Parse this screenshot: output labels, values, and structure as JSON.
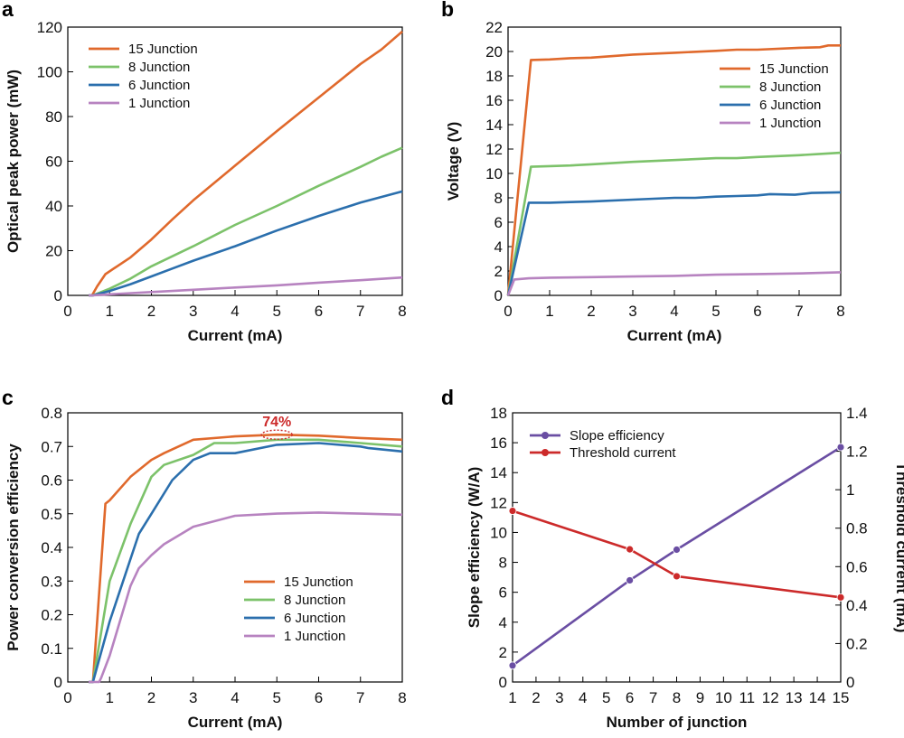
{
  "colors": {
    "j15": "#e0692c",
    "j8": "#7cc26a",
    "j6": "#2b6fad",
    "j1": "#b783c0",
    "slope": "#6a4ea3",
    "threshold": "#cc2a2a",
    "annotation": "#cc2a2a"
  },
  "chart_data": [
    {
      "panel": "a",
      "type": "line",
      "xlabel": "Current (mA)",
      "ylabel": "Optical peak power (mW)",
      "xlim": [
        0,
        8
      ],
      "ylim": [
        0,
        120
      ],
      "xticks": [
        "0",
        "1",
        "2",
        "3",
        "4",
        "5",
        "6",
        "7",
        "8"
      ],
      "yticks": [
        "0",
        "20",
        "40",
        "60",
        "80",
        "100",
        "120"
      ],
      "legend_position": "top-left",
      "series": [
        {
          "name": "15 Junction",
          "color_key": "j15",
          "points": [
            [
              0.5,
              0
            ],
            [
              0.58,
              0
            ],
            [
              0.7,
              4
            ],
            [
              0.9,
              9.5
            ],
            [
              1.5,
              17
            ],
            [
              2,
              25
            ],
            [
              2.5,
              34
            ],
            [
              3,
              42.5
            ],
            [
              4,
              58
            ],
            [
              5,
              73.5
            ],
            [
              6,
              88.5
            ],
            [
              7,
              103.5
            ],
            [
              7.5,
              110
            ],
            [
              8,
              118
            ]
          ]
        },
        {
          "name": "8 Junction",
          "color_key": "j8",
          "points": [
            [
              0.5,
              0
            ],
            [
              0.6,
              0
            ],
            [
              1,
              3
            ],
            [
              1.5,
              7.5
            ],
            [
              2,
              13
            ],
            [
              3,
              22
            ],
            [
              4,
              31.5
            ],
            [
              5,
              40
            ],
            [
              6,
              49
            ],
            [
              7,
              57.5
            ],
            [
              7.5,
              62
            ],
            [
              8,
              66
            ]
          ]
        },
        {
          "name": "6 Junction",
          "color_key": "j6",
          "points": [
            [
              0.5,
              0
            ],
            [
              0.6,
              0
            ],
            [
              1,
              2
            ],
            [
              1.5,
              5
            ],
            [
              2,
              8.5
            ],
            [
              2.5,
              12
            ],
            [
              3,
              15.5
            ],
            [
              4,
              22
            ],
            [
              5,
              29
            ],
            [
              6,
              35.5
            ],
            [
              7,
              41.5
            ],
            [
              8,
              46.5
            ]
          ]
        },
        {
          "name": "1 Junction",
          "color_key": "j1",
          "points": [
            [
              0.5,
              0
            ],
            [
              0.6,
              0
            ],
            [
              1,
              0.5
            ],
            [
              2,
              1.5
            ],
            [
              3,
              2.5
            ],
            [
              4,
              3.5
            ],
            [
              5,
              4.5
            ],
            [
              6,
              5.7
            ],
            [
              7,
              6.8
            ],
            [
              8,
              8
            ]
          ]
        }
      ]
    },
    {
      "panel": "b",
      "type": "line",
      "xlabel": "Current (mA)",
      "ylabel": "Voltage (V)",
      "xlim": [
        0,
        8
      ],
      "ylim": [
        0,
        22
      ],
      "xticks": [
        "0",
        "1",
        "2",
        "3",
        "4",
        "5",
        "6",
        "7",
        "8"
      ],
      "yticks": [
        "0",
        "2",
        "4",
        "6",
        "8",
        "10",
        "12",
        "14",
        "16",
        "18",
        "20",
        "22"
      ],
      "legend_position": "top-right",
      "series": [
        {
          "name": "15 Junction",
          "color_key": "j15",
          "points": [
            [
              0,
              0
            ],
            [
              0.55,
              19.3
            ],
            [
              1,
              19.35
            ],
            [
              1.5,
              19.45
            ],
            [
              2,
              19.5
            ],
            [
              3,
              19.75
            ],
            [
              4,
              19.9
            ],
            [
              5,
              20.05
            ],
            [
              5.5,
              20.15
            ],
            [
              6,
              20.15
            ],
            [
              7,
              20.3
            ],
            [
              7.5,
              20.35
            ],
            [
              7.7,
              20.5
            ],
            [
              8,
              20.5
            ]
          ]
        },
        {
          "name": "8 Junction",
          "color_key": "j8",
          "points": [
            [
              0,
              0
            ],
            [
              0.55,
              10.55
            ],
            [
              1,
              10.6
            ],
            [
              1.5,
              10.65
            ],
            [
              2,
              10.75
            ],
            [
              3,
              10.95
            ],
            [
              4,
              11.1
            ],
            [
              5,
              11.25
            ],
            [
              5.5,
              11.25
            ],
            [
              6,
              11.35
            ],
            [
              7,
              11.5
            ],
            [
              7.5,
              11.6
            ],
            [
              8,
              11.7
            ]
          ]
        },
        {
          "name": "6 Junction",
          "color_key": "j6",
          "points": [
            [
              0,
              0
            ],
            [
              0.5,
              7.6
            ],
            [
              1,
              7.6
            ],
            [
              1.5,
              7.65
            ],
            [
              2,
              7.7
            ],
            [
              3,
              7.85
            ],
            [
              4,
              8
            ],
            [
              4.5,
              8
            ],
            [
              5,
              8.1
            ],
            [
              5.5,
              8.15
            ],
            [
              6,
              8.2
            ],
            [
              6.3,
              8.3
            ],
            [
              6.9,
              8.25
            ],
            [
              7.3,
              8.4
            ],
            [
              8,
              8.45
            ]
          ]
        },
        {
          "name": "1 Junction",
          "color_key": "j1",
          "points": [
            [
              0,
              0
            ],
            [
              0.15,
              1.3
            ],
            [
              0.5,
              1.4
            ],
            [
              1,
              1.45
            ],
            [
              2,
              1.5
            ],
            [
              3,
              1.55
            ],
            [
              4,
              1.6
            ],
            [
              5,
              1.7
            ],
            [
              6,
              1.75
            ],
            [
              7,
              1.8
            ],
            [
              8,
              1.9
            ]
          ]
        }
      ]
    },
    {
      "panel": "c",
      "type": "line",
      "xlabel": "Current (mA)",
      "ylabel": "Power conversion efficiency",
      "xlim": [
        0,
        8
      ],
      "ylim": [
        0,
        0.8
      ],
      "xticks": [
        "0",
        "1",
        "2",
        "3",
        "4",
        "5",
        "6",
        "7",
        "8"
      ],
      "yticks": [
        "0",
        "0.1",
        "0.2",
        "0.3",
        "0.4",
        "0.5",
        "0.6",
        "0.7",
        "0.8"
      ],
      "legend_position": "bottom-right",
      "annotation": {
        "text": "74%",
        "x": 5,
        "y": 0.735
      },
      "series": [
        {
          "name": "15 Junction",
          "color_key": "j15",
          "points": [
            [
              0.5,
              0
            ],
            [
              0.6,
              0
            ],
            [
              0.9,
              0.53
            ],
            [
              1,
              0.54
            ],
            [
              1.5,
              0.61
            ],
            [
              2,
              0.66
            ],
            [
              2.3,
              0.68
            ],
            [
              3,
              0.72
            ],
            [
              4,
              0.73
            ],
            [
              5,
              0.735
            ],
            [
              6,
              0.732
            ],
            [
              7,
              0.725
            ],
            [
              8,
              0.72
            ]
          ]
        },
        {
          "name": "8 Junction",
          "color_key": "j8",
          "points": [
            [
              0.5,
              0
            ],
            [
              0.6,
              0
            ],
            [
              1,
              0.3
            ],
            [
              1.5,
              0.47
            ],
            [
              2,
              0.61
            ],
            [
              2.3,
              0.645
            ],
            [
              3,
              0.675
            ],
            [
              3.5,
              0.71
            ],
            [
              4,
              0.71
            ],
            [
              5,
              0.72
            ],
            [
              6,
              0.72
            ],
            [
              7,
              0.71
            ],
            [
              8,
              0.7
            ]
          ]
        },
        {
          "name": "6 Junction",
          "color_key": "j6",
          "points": [
            [
              0.5,
              0
            ],
            [
              0.6,
              0
            ],
            [
              1,
              0.18
            ],
            [
              1.7,
              0.44
            ],
            [
              2,
              0.5
            ],
            [
              2.5,
              0.6
            ],
            [
              3,
              0.66
            ],
            [
              3.4,
              0.68
            ],
            [
              4,
              0.68
            ],
            [
              5,
              0.705
            ],
            [
              6,
              0.71
            ],
            [
              7,
              0.7
            ],
            [
              7.2,
              0.695
            ],
            [
              8,
              0.685
            ]
          ]
        },
        {
          "name": "1 Junction",
          "color_key": "j1",
          "points": [
            [
              0.5,
              0
            ],
            [
              0.75,
              0
            ],
            [
              0.8,
              0.02
            ],
            [
              1,
              0.12
            ],
            [
              1.5,
              0.44
            ],
            [
              1.7,
              0.52
            ],
            [
              2,
              0.58
            ],
            [
              2.3,
              0.63
            ],
            [
              3,
              0.71
            ],
            [
              4,
              0.76
            ],
            [
              5,
              0.77
            ],
            [
              6,
              0.775
            ],
            [
              7,
              0.77
            ],
            [
              8,
              0.765
            ]
          ],
          "scale": 0.65
        }
      ]
    },
    {
      "panel": "d",
      "type": "line",
      "xlabel": "Number of junction",
      "ylabel": "Slope efficiency (W/A)",
      "ylabel_right": "Threshold current (mA)",
      "xlim": [
        1,
        15
      ],
      "ylim": [
        0,
        18
      ],
      "ylim_right": [
        0,
        1.4
      ],
      "xticks": [
        "1",
        "2",
        "3",
        "4",
        "5",
        "6",
        "7",
        "8",
        "9",
        "10",
        "11",
        "12",
        "13",
        "14",
        "15"
      ],
      "yticks": [
        "0",
        "2",
        "4",
        "6",
        "8",
        "10",
        "12",
        "14",
        "16",
        "18"
      ],
      "yticks_right": [
        "0",
        "0.2",
        "0.4",
        "0.6",
        "0.8",
        "1",
        "1.2",
        "1.4"
      ],
      "legend_position": "top-left",
      "series": [
        {
          "name": "Slope efficiency",
          "color_key": "slope",
          "axis": "left",
          "points": [
            [
              1,
              1.1
            ],
            [
              6,
              6.8
            ],
            [
              8,
              8.85
            ],
            [
              15,
              15.7
            ]
          ]
        },
        {
          "name": "Threshold current",
          "color_key": "threshold",
          "axis": "right",
          "points": [
            [
              1,
              0.89
            ],
            [
              6,
              0.69
            ],
            [
              8,
              0.55
            ],
            [
              15,
              0.44
            ]
          ]
        }
      ]
    }
  ]
}
